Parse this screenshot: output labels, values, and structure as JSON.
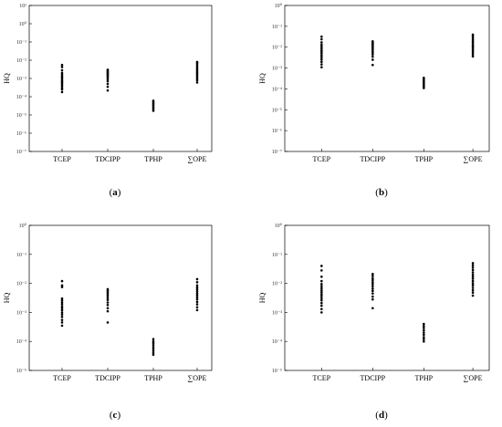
{
  "chart_data": [
    {
      "type": "scatter",
      "panel_label": "a",
      "ylabel": "HQ",
      "yscale": "log",
      "ylim": [
        1e-07,
        10
      ],
      "tick_labels": [
        "10⁻⁷",
        "10⁻⁶",
        "10⁻⁵",
        "10⁻⁴",
        "10⁻³",
        "10⁻²",
        "10⁻¹",
        "10⁰",
        "10¹"
      ],
      "tick_values": [
        1e-07,
        1e-06,
        1e-05,
        0.0001,
        0.001,
        0.01,
        0.1,
        1,
        10
      ],
      "categories": [
        "TCEP",
        "TDCIPP",
        "TPHP",
        "∑OPE"
      ],
      "series": [
        {
          "category": "TCEP",
          "values": [
            0.00018,
            0.00025,
            0.0003,
            0.00038,
            0.00045,
            0.00055,
            0.00065,
            0.00075,
            0.0009,
            0.0011,
            0.0013,
            0.0016,
            0.002,
            0.0028,
            0.0042,
            0.0055
          ]
        },
        {
          "category": "TDCIPP",
          "values": [
            0.00022,
            0.00035,
            0.0005,
            0.0007,
            0.0009,
            0.0011,
            0.0013,
            0.0015,
            0.0017,
            0.0019,
            0.0021,
            0.0024,
            0.0027,
            0.003
          ]
        },
        {
          "category": "TPHP",
          "values": [
            1.7e-05,
            2e-05,
            2.4e-05,
            2.8e-05,
            3.3e-05,
            3.9e-05,
            4.5e-05,
            5.2e-05,
            6e-05
          ]
        },
        {
          "category": "∑OPE",
          "values": [
            0.0006,
            0.0008,
            0.001,
            0.0012,
            0.0015,
            0.0018,
            0.0021,
            0.0025,
            0.003,
            0.0036,
            0.0044,
            0.0055,
            0.0068,
            0.008
          ]
        }
      ]
    },
    {
      "type": "scatter",
      "panel_label": "b",
      "ylabel": "HQ",
      "yscale": "log",
      "ylim": [
        1e-07,
        1
      ],
      "tick_labels": [
        "10⁻⁷",
        "10⁻⁶",
        "10⁻⁵",
        "10⁻⁴",
        "10⁻³",
        "10⁻²",
        "10⁻¹",
        "10⁰"
      ],
      "tick_values": [
        1e-07,
        1e-06,
        1e-05,
        0.0001,
        0.001,
        0.01,
        0.1,
        1
      ],
      "categories": [
        "TCEP",
        "TDCIPP",
        "TPHP",
        "∑OPE"
      ],
      "series": [
        {
          "category": "TCEP",
          "values": [
            0.0011,
            0.0015,
            0.002,
            0.0026,
            0.0033,
            0.004,
            0.005,
            0.006,
            0.007,
            0.0085,
            0.0105,
            0.013,
            0.017,
            0.024,
            0.032
          ]
        },
        {
          "category": "TDCIPP",
          "values": [
            0.0014,
            0.0025,
            0.0035,
            0.0045,
            0.0055,
            0.0065,
            0.0078,
            0.009,
            0.0105,
            0.012,
            0.0135,
            0.015,
            0.017,
            0.019
          ]
        },
        {
          "category": "TPHP",
          "values": [
            0.00011,
            0.00013,
            0.00015,
            0.00018,
            0.00021,
            0.00025,
            0.00029,
            0.00034
          ]
        },
        {
          "category": "∑OPE",
          "values": [
            0.0036,
            0.0045,
            0.0055,
            0.0066,
            0.008,
            0.0095,
            0.011,
            0.013,
            0.016,
            0.019,
            0.023,
            0.028,
            0.034,
            0.04
          ]
        }
      ]
    },
    {
      "type": "scatter",
      "panel_label": "c",
      "ylabel": "HQ",
      "yscale": "log",
      "ylim": [
        1e-05,
        1
      ],
      "tick_labels": [
        "10⁻⁵",
        "10⁻⁴",
        "10⁻³",
        "10⁻²",
        "10⁻¹",
        "10⁰"
      ],
      "tick_values": [
        1e-05,
        0.0001,
        0.001,
        0.01,
        0.1,
        1
      ],
      "categories": [
        "TCEP",
        "TDCIPP",
        "TPHP",
        "∑OPE"
      ],
      "series": [
        {
          "category": "TCEP",
          "values": [
            0.00035,
            0.00045,
            0.00055,
            0.0007,
            0.00085,
            0.001,
            0.0012,
            0.0014,
            0.0016,
            0.0019,
            0.0022,
            0.0026,
            0.003,
            0.0075,
            0.0085,
            0.012
          ]
        },
        {
          "category": "TDCIPP",
          "values": [
            0.00045,
            0.0011,
            0.0014,
            0.0018,
            0.0022,
            0.0027,
            0.0032,
            0.0038,
            0.0044,
            0.005,
            0.0056,
            0.0063
          ]
        },
        {
          "category": "TPHP",
          "values": [
            3.5e-05,
            4e-05,
            4.7e-05,
            5.5e-05,
            6.4e-05,
            7.5e-05,
            8.8e-05,
            0.0001,
            0.00012
          ]
        },
        {
          "category": "∑OPE",
          "values": [
            0.0012,
            0.0015,
            0.0019,
            0.0023,
            0.0028,
            0.0033,
            0.0039,
            0.0045,
            0.0053,
            0.0062,
            0.0072,
            0.0085,
            0.011,
            0.014
          ]
        }
      ]
    },
    {
      "type": "scatter",
      "panel_label": "d",
      "ylabel": "HQ",
      "yscale": "log",
      "ylim": [
        1e-05,
        1
      ],
      "tick_labels": [
        "10⁻⁵",
        "10⁻⁴",
        "10⁻³",
        "10⁻²",
        "10⁻¹",
        "10⁰"
      ],
      "tick_values": [
        1e-05,
        0.0001,
        0.001,
        0.01,
        0.1,
        1
      ],
      "categories": [
        "TCEP",
        "TDCIPP",
        "TPHP",
        "∑OPE"
      ],
      "series": [
        {
          "category": "TCEP",
          "values": [
            0.001,
            0.0013,
            0.0017,
            0.0021,
            0.0026,
            0.0031,
            0.0037,
            0.0043,
            0.005,
            0.0058,
            0.0068,
            0.008,
            0.0095,
            0.012,
            0.017,
            0.028,
            0.04
          ]
        },
        {
          "category": "TDCIPP",
          "values": [
            0.0014,
            0.0028,
            0.0035,
            0.0045,
            0.0055,
            0.0066,
            0.008,
            0.0095,
            0.011,
            0.013,
            0.015,
            0.018,
            0.021
          ]
        },
        {
          "category": "TPHP",
          "values": [
            0.0001,
            0.00012,
            0.00014,
            0.00017,
            0.0002,
            0.00024,
            0.00029,
            0.00034,
            0.0004
          ]
        },
        {
          "category": "∑OPE",
          "values": [
            0.0038,
            0.0048,
            0.0058,
            0.007,
            0.0085,
            0.01,
            0.012,
            0.0145,
            0.017,
            0.02,
            0.024,
            0.029,
            0.035,
            0.042,
            0.05
          ]
        }
      ]
    }
  ]
}
